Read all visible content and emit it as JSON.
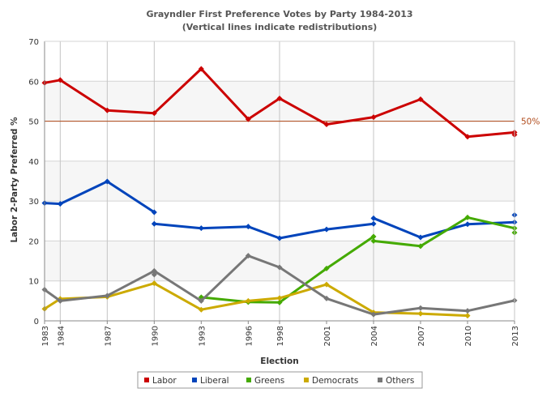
{
  "chart_data": {
    "type": "line",
    "title": "Grayndler First Preference Votes by Party 1984-2013",
    "subtitle": "(Vertical lines indicate redistributions)",
    "xlabel": "Election",
    "ylabel": "Labor 2-Party Preferred %",
    "ylim": [
      0,
      70
    ],
    "yticks": [
      "0",
      "10",
      "20",
      "30",
      "40",
      "50",
      "60",
      "70"
    ],
    "categories": [
      "1983",
      "1984",
      "1987",
      "1990",
      "1993",
      "1996",
      "1998",
      "2001",
      "2004",
      "2007",
      "2010",
      "2013"
    ],
    "x_values": [
      1983,
      1984,
      1987,
      1990,
      1993,
      1996,
      1998,
      2001,
      2004,
      2007,
      2010,
      2013
    ],
    "redistributions": [
      1983,
      1984,
      1987,
      1990,
      1998,
      2004,
      2013
    ],
    "reference_line": {
      "value": 50,
      "label": "50%",
      "color": "#b04a1a"
    },
    "grid": true,
    "alternate_bands": true,
    "legend_position": "bottom",
    "series": [
      {
        "name": "Labor",
        "color": "#cc0000",
        "segments": [
          [
            [
              1983,
              59.6
            ],
            [
              1984,
              60.3
            ],
            [
              1987,
              52.7
            ],
            [
              1990,
              52.0
            ],
            [
              1993,
              63.1
            ],
            [
              1996,
              50.5
            ],
            [
              1998,
              55.7
            ],
            [
              2001,
              49.2
            ],
            [
              2004,
              51.0
            ],
            [
              2007,
              55.5
            ],
            [
              2010,
              46.1
            ],
            [
              2013,
              47.2
            ]
          ]
        ],
        "extra_points": [
          [
            2013,
            46.6
          ]
        ]
      },
      {
        "name": "Liberal",
        "color": "#0044bb",
        "segments": [
          [
            [
              1983,
              29.5
            ],
            [
              1984,
              29.3
            ],
            [
              1987,
              34.9
            ],
            [
              1990,
              27.2
            ]
          ],
          [
            [
              1990,
              24.3
            ],
            [
              1993,
              23.2
            ],
            [
              1996,
              23.6
            ],
            [
              1998,
              20.7
            ],
            [
              2001,
              22.9
            ],
            [
              2004,
              24.3
            ]
          ],
          [
            [
              2004,
              25.7
            ],
            [
              2007,
              20.9
            ],
            [
              2010,
              24.2
            ],
            [
              2013,
              24.7
            ]
          ]
        ],
        "extra_points": [
          [
            2013,
            26.5
          ]
        ]
      },
      {
        "name": "Greens",
        "color": "#44aa00",
        "segments": [
          [
            [
              1993,
              5.9
            ],
            [
              1996,
              4.7
            ],
            [
              1998,
              4.6
            ],
            [
              2001,
              13.1
            ],
            [
              2004,
              21.1
            ]
          ],
          [
            [
              2004,
              20.0
            ],
            [
              2007,
              18.7
            ],
            [
              2010,
              25.9
            ],
            [
              2013,
              23.2
            ]
          ]
        ],
        "extra_points": [
          [
            2013,
            22.1
          ]
        ]
      },
      {
        "name": "Democrats",
        "color": "#ccaa00",
        "segments": [
          [
            [
              1983,
              3.0
            ],
            [
              1984,
              5.5
            ],
            [
              1987,
              6.0
            ],
            [
              1990,
              9.4
            ],
            [
              1993,
              2.8
            ],
            [
              1996,
              5.0
            ],
            [
              1998,
              5.7
            ],
            [
              2001,
              9.1
            ],
            [
              2004,
              2.1
            ],
            [
              2007,
              1.8
            ],
            [
              2010,
              1.3
            ]
          ]
        ],
        "extra_points": []
      },
      {
        "name": "Others",
        "color": "#777777",
        "segments": [
          [
            [
              1983,
              7.8
            ],
            [
              1984,
              5.0
            ],
            [
              1987,
              6.3
            ],
            [
              1990,
              12.5
            ],
            [
              1993,
              5.0
            ],
            [
              1996,
              16.3
            ],
            [
              1998,
              13.4
            ],
            [
              2001,
              5.6
            ],
            [
              2004,
              1.6
            ],
            [
              2007,
              3.2
            ],
            [
              2010,
              2.5
            ],
            [
              2013,
              5.1
            ]
          ]
        ],
        "extra_points": [
          [
            1990,
            11.6
          ]
        ]
      }
    ]
  }
}
